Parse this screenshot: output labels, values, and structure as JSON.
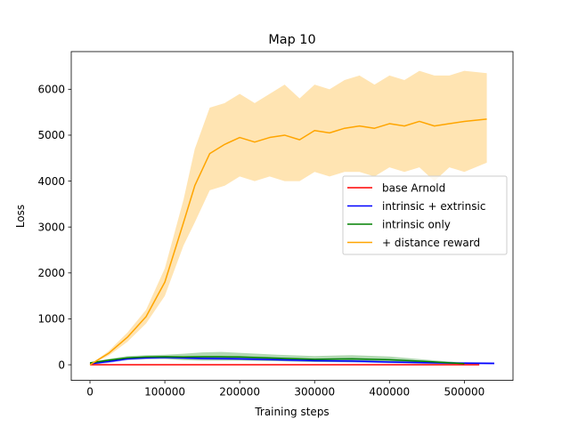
{
  "chart_data": {
    "type": "line",
    "title": "Map 10",
    "xlabel": "Training steps",
    "ylabel": "Loss",
    "xlim": [
      -25000,
      565000
    ],
    "ylim": [
      -340,
      6820
    ],
    "xticks": [
      0,
      100000,
      200000,
      300000,
      400000,
      500000
    ],
    "yticks": [
      0,
      1000,
      2000,
      3000,
      4000,
      5000,
      6000
    ],
    "grid": false,
    "legend_position": "center-right",
    "series": [
      {
        "name": "base Arnold",
        "color": "#ff0000",
        "x": [
          0,
          100000,
          200000,
          300000,
          400000,
          520000
        ],
        "y": [
          0,
          0,
          0,
          0,
          0,
          0
        ],
        "y_low": [
          0,
          0,
          0,
          0,
          0,
          0
        ],
        "y_high": [
          0,
          0,
          0,
          0,
          0,
          0
        ]
      },
      {
        "name": "intrinsic + extrinsic",
        "color": "#0000ff",
        "x": [
          0,
          25000,
          50000,
          75000,
          100000,
          125000,
          150000,
          200000,
          250000,
          300000,
          350000,
          400000,
          450000,
          500000,
          540000
        ],
        "y": [
          20,
          70,
          130,
          150,
          160,
          150,
          140,
          130,
          110,
          90,
          80,
          60,
          45,
          35,
          30
        ],
        "y_low": [
          0,
          40,
          100,
          120,
          130,
          120,
          110,
          100,
          80,
          60,
          50,
          35,
          20,
          10,
          5
        ],
        "y_high": [
          40,
          100,
          160,
          180,
          190,
          180,
          170,
          160,
          140,
          120,
          110,
          85,
          70,
          60,
          55
        ]
      },
      {
        "name": "intrinsic only",
        "color": "#008000",
        "x": [
          0,
          25000,
          50000,
          75000,
          100000,
          125000,
          150000,
          175000,
          200000,
          250000,
          300000,
          350000,
          400000,
          450000,
          500000
        ],
        "y": [
          40,
          100,
          150,
          170,
          175,
          170,
          175,
          175,
          170,
          145,
          120,
          130,
          110,
          70,
          25
        ],
        "y_low": [
          20,
          70,
          110,
          130,
          130,
          100,
          90,
          90,
          90,
          80,
          60,
          60,
          50,
          30,
          10
        ],
        "y_high": [
          60,
          130,
          190,
          210,
          220,
          240,
          270,
          280,
          260,
          220,
          190,
          210,
          180,
          110,
          40
        ]
      },
      {
        "name": "+ distance reward",
        "color": "#ffa500",
        "x": [
          0,
          25000,
          50000,
          75000,
          100000,
          125000,
          140000,
          160000,
          180000,
          200000,
          220000,
          240000,
          260000,
          280000,
          300000,
          320000,
          340000,
          360000,
          380000,
          400000,
          420000,
          440000,
          460000,
          480000,
          500000,
          530000
        ],
        "y": [
          0,
          250,
          600,
          1050,
          1800,
          3100,
          3900,
          4600,
          4800,
          4950,
          4850,
          4950,
          5000,
          4900,
          5100,
          5050,
          5150,
          5200,
          5150,
          5250,
          5200,
          5300,
          5200,
          5250,
          5300,
          5350
        ],
        "y_low": [
          0,
          200,
          500,
          900,
          1500,
          2600,
          3100,
          3800,
          3900,
          4100,
          4000,
          4100,
          4000,
          4000,
          4200,
          4100,
          4200,
          4200,
          4100,
          4300,
          4200,
          4300,
          4000,
          4300,
          4200,
          4400
        ],
        "y_high": [
          0,
          300,
          700,
          1200,
          2100,
          3600,
          4700,
          5600,
          5700,
          5900,
          5700,
          5900,
          6100,
          5800,
          6100,
          6000,
          6200,
          6300,
          6100,
          6300,
          6200,
          6400,
          6300,
          6300,
          6400,
          6350
        ]
      }
    ]
  }
}
